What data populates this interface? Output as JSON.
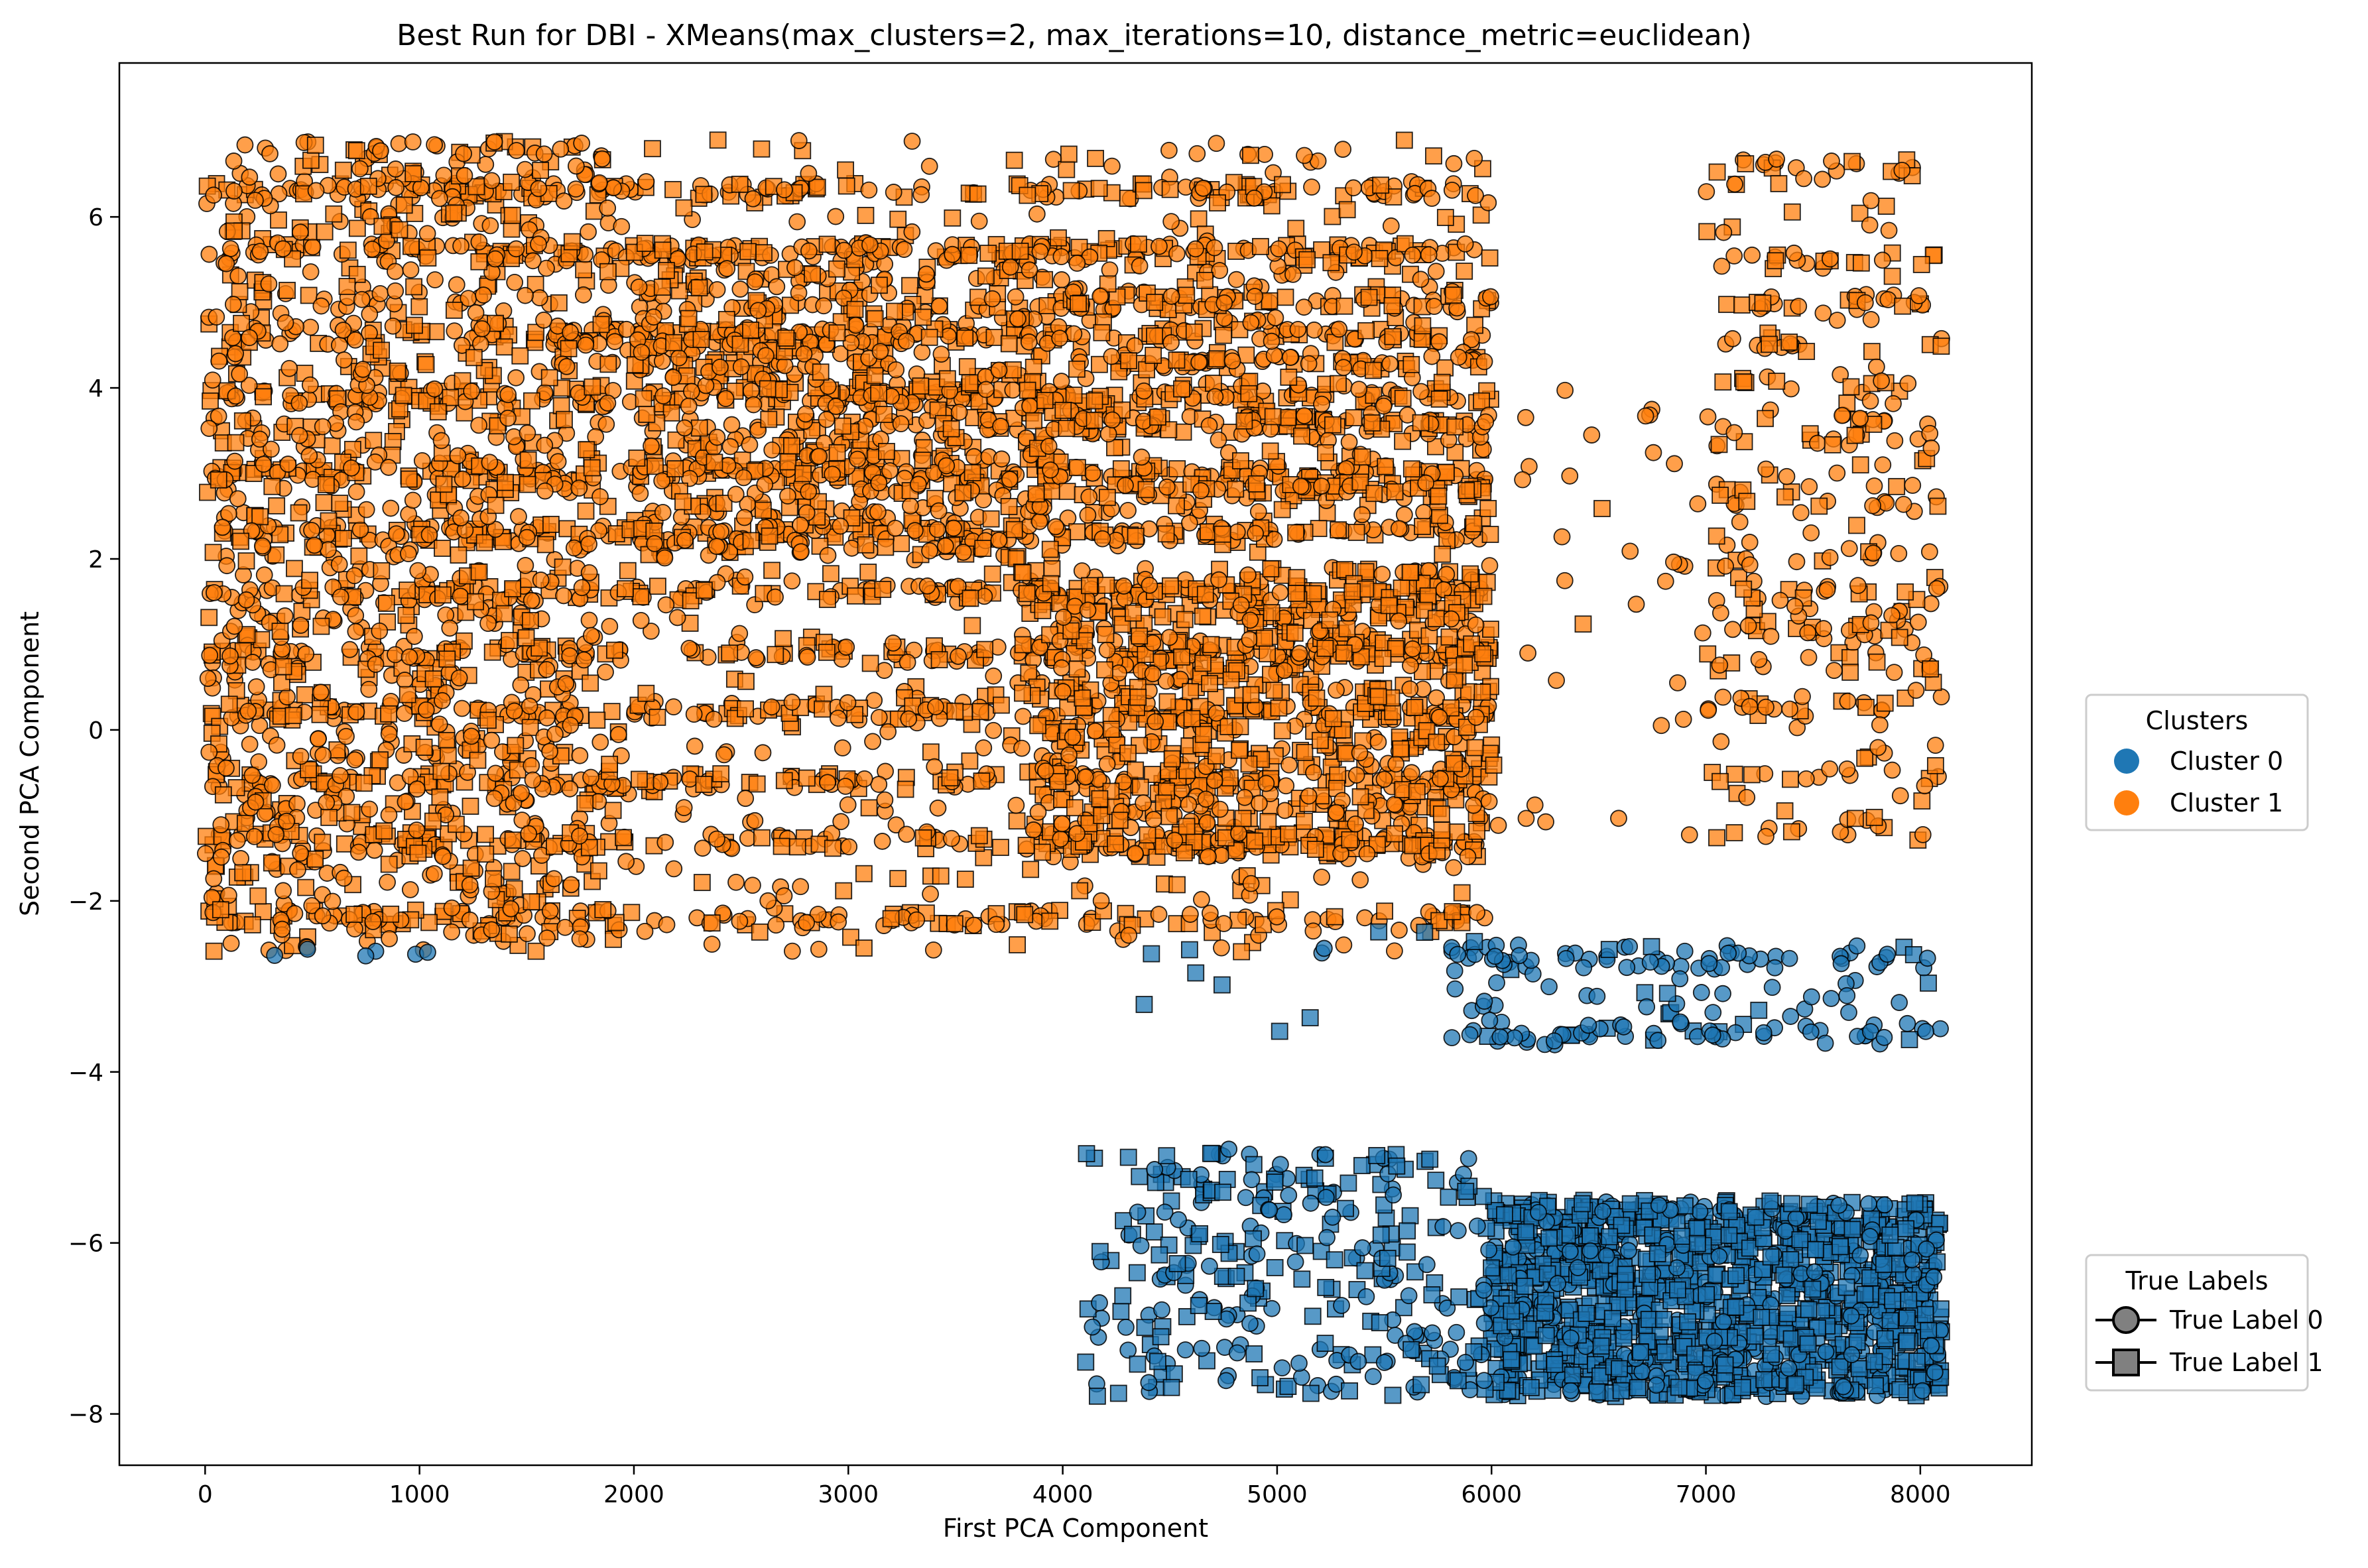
{
  "chart_data": {
    "type": "scatter",
    "title": "Best Run for DBI - XMeans(max_clusters=2, max_iterations=10, distance_metric=euclidean)",
    "xlabel": "First PCA Component",
    "ylabel": "Second PCA Component",
    "xlim": [
      -400,
      8520
    ],
    "ylim": [
      -8.6,
      7.8
    ],
    "xticks": [
      0,
      1000,
      2000,
      3000,
      4000,
      5000,
      6000,
      7000,
      8000
    ],
    "xtick_labels": [
      "0",
      "1000",
      "2000",
      "3000",
      "4000",
      "5000",
      "6000",
      "7000",
      "8000"
    ],
    "yticks": [
      -8,
      -6,
      -4,
      -2,
      0,
      2,
      4,
      6
    ],
    "ytick_labels": [
      "−8",
      "−6",
      "−4",
      "−2",
      "0",
      "2",
      "4",
      "6"
    ],
    "grid": false,
    "series": [
      {
        "name": "Cluster 0",
        "color": "#1f77b4"
      },
      {
        "name": "Cluster 1",
        "color": "#ff7f0e"
      }
    ],
    "marker_legend": [
      {
        "name": "True Label 0",
        "marker": "circle"
      },
      {
        "name": "True Label 1",
        "marker": "square"
      }
    ],
    "legend_titles": {
      "clusters": "Clusters",
      "true_labels": "True Labels"
    },
    "legend_placement": "outside-right",
    "regions": [
      {
        "series": 1,
        "x": [
          0,
          6000
        ],
        "y": [
          -2.6,
          6.9
        ],
        "n": 2600,
        "squares": 0.45,
        "bands": [
          6.3,
          5.6,
          4.6,
          3.9,
          3.0,
          2.3,
          1.6,
          0.9,
          0.2,
          -0.6,
          -1.3,
          -2.2
        ]
      },
      {
        "series": 1,
        "x": [
          0,
          1900
        ],
        "y": [
          -2.6,
          6.9
        ],
        "n": 900,
        "squares": 0.35,
        "bands": []
      },
      {
        "series": 1,
        "x": [
          2000,
          4000
        ],
        "y": [
          2.0,
          5.7
        ],
        "n": 700,
        "squares": 0.4,
        "bands": []
      },
      {
        "series": 1,
        "x": [
          3800,
          6000
        ],
        "y": [
          -1.5,
          1.9
        ],
        "n": 800,
        "squares": 0.6,
        "bands": []
      },
      {
        "series": 1,
        "x": [
          4000,
          6000
        ],
        "y": [
          2.2,
          5.5
        ],
        "n": 400,
        "squares": 0.55,
        "bands": [
          5.0,
          4.3,
          3.6,
          2.8
        ]
      },
      {
        "series": 1,
        "x": [
          7000,
          8100
        ],
        "y": [
          -1.3,
          6.7
        ],
        "n": 350,
        "squares": 0.35,
        "bands": [
          6.6,
          5.5,
          5.0,
          4.5,
          4.0,
          3.6,
          3.4,
          2.8,
          2.6,
          2.0,
          1.6,
          1.3,
          1.1,
          0.8,
          0.3,
          -0.5,
          -1.2
        ]
      },
      {
        "series": 1,
        "x": [
          6000,
          7000
        ],
        "y": [
          -1.3,
          4.0
        ],
        "n": 35,
        "squares": 0.2,
        "bands": []
      },
      {
        "series": 0,
        "x": [
          6000,
          8100
        ],
        "y": [
          -7.8,
          -5.5
        ],
        "n": 1300,
        "squares": 0.7,
        "bands": []
      },
      {
        "series": 0,
        "x": [
          4100,
          6000
        ],
        "y": [
          -7.8,
          -4.9
        ],
        "n": 300,
        "squares": 0.5,
        "bands": []
      },
      {
        "series": 0,
        "x": [
          5800,
          8100
        ],
        "y": [
          -3.7,
          -2.5
        ],
        "n": 160,
        "squares": 0.15,
        "bands": [
          -2.6,
          -2.7,
          -3.5,
          -3.6
        ]
      },
      {
        "series": 0,
        "x": [
          4100,
          6000
        ],
        "y": [
          -3.6,
          -2.3
        ],
        "n": 12,
        "squares": 0.9,
        "bands": []
      },
      {
        "series": 0,
        "x": [
          300,
          1700
        ],
        "y": [
          -2.7,
          -2.5
        ],
        "n": 6,
        "squares": 0.0,
        "bands": []
      }
    ]
  }
}
